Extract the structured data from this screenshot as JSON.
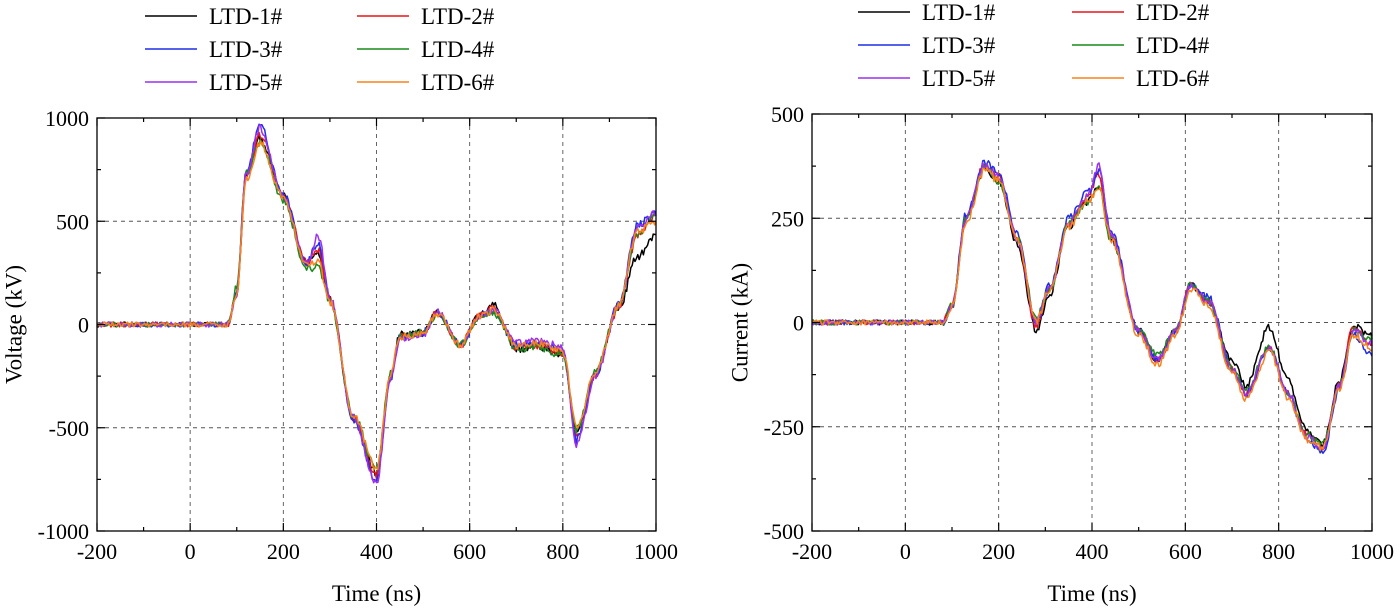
{
  "colors": {
    "LTD-1#": "#000000",
    "LTD-2#": "#e8141c",
    "LTD-3#": "#1f2de6",
    "LTD-4#": "#1a8a1a",
    "LTD-5#": "#9b30ee",
    "LTD-6#": "#f7821b"
  },
  "chart_data": [
    {
      "type": "line",
      "xlabel": "Time (ns)",
      "ylabel": "Voltage (kV)",
      "xlim": [
        -200,
        1000
      ],
      "ylim": [
        -1000,
        1000
      ],
      "xticks": [
        -200,
        0,
        200,
        400,
        600,
        800,
        1000
      ],
      "yticks": [
        -1000,
        -500,
        0,
        500,
        1000
      ],
      "x_tick_labels": [
        "-200",
        "0",
        "200",
        "400",
        "600",
        "800",
        "1000"
      ],
      "y_tick_labels": [
        "-1000",
        "-500",
        "0",
        "500",
        "1000"
      ],
      "grid": true,
      "legend": [
        "LTD-1#",
        "LTD-2#",
        "LTD-3#",
        "LTD-4#",
        "LTD-5#",
        "LTD-6#"
      ],
      "legend_position": "top, above plot, two columns",
      "x": [
        -200,
        80,
        100,
        120,
        150,
        200,
        250,
        275,
        300,
        350,
        400,
        430,
        450,
        500,
        530,
        580,
        620,
        650,
        700,
        750,
        800,
        830,
        870,
        920,
        960,
        1000
      ],
      "series": [
        {
          "name": "LTD-1#",
          "values": [
            0,
            0,
            150,
            720,
            900,
            620,
            300,
            350,
            120,
            -450,
            -720,
            -250,
            -50,
            -40,
            60,
            -100,
            40,
            100,
            -120,
            -110,
            -150,
            -520,
            -230,
            80,
            330,
            430
          ]
        },
        {
          "name": "LTD-2#",
          "values": [
            0,
            0,
            140,
            710,
            920,
            620,
            300,
            360,
            120,
            -450,
            -730,
            -250,
            -60,
            -40,
            60,
            -100,
            40,
            80,
            -110,
            -100,
            -140,
            -550,
            -240,
            80,
            430,
            520
          ]
        },
        {
          "name": "LTD-3#",
          "values": [
            0,
            0,
            160,
            740,
            960,
            630,
            300,
            400,
            130,
            -460,
            -760,
            -260,
            -60,
            -40,
            60,
            -100,
            40,
            70,
            -100,
            -90,
            -120,
            -560,
            -240,
            100,
            480,
            540
          ]
        },
        {
          "name": "LTD-4#",
          "values": [
            0,
            0,
            180,
            730,
            890,
            600,
            270,
            280,
            110,
            -440,
            -700,
            -240,
            -60,
            -40,
            50,
            -100,
            30,
            60,
            -120,
            -110,
            -150,
            -510,
            -220,
            90,
            440,
            520
          ]
        },
        {
          "name": "LTD-5#",
          "values": [
            0,
            0,
            150,
            730,
            950,
            620,
            300,
            430,
            130,
            -450,
            -770,
            -260,
            -70,
            -50,
            60,
            -100,
            40,
            70,
            -90,
            -80,
            -110,
            -580,
            -250,
            90,
            470,
            540
          ]
        },
        {
          "name": "LTD-6#",
          "values": [
            0,
            0,
            140,
            700,
            880,
            610,
            290,
            300,
            110,
            -440,
            -700,
            -240,
            -60,
            -40,
            50,
            -100,
            40,
            70,
            -100,
            -90,
            -130,
            -500,
            -230,
            90,
            450,
            500
          ]
        }
      ]
    },
    {
      "type": "line",
      "xlabel": "Time (ns)",
      "ylabel": "Current (kA)",
      "xlim": [
        -200,
        1000
      ],
      "ylim": [
        -500,
        500
      ],
      "xticks": [
        -200,
        0,
        200,
        400,
        600,
        800,
        1000
      ],
      "yticks": [
        -500,
        -250,
        0,
        250,
        500
      ],
      "x_tick_labels": [
        "-200",
        "0",
        "200",
        "400",
        "600",
        "800",
        "1000"
      ],
      "y_tick_labels": [
        "-500",
        "-250",
        "0",
        "250",
        "500"
      ],
      "grid": true,
      "legend": [
        "LTD-1#",
        "LTD-2#",
        "LTD-3#",
        "LTD-4#",
        "LTD-5#",
        "LTD-6#"
      ],
      "legend_position": "top, above plot, two columns",
      "x": [
        -200,
        80,
        100,
        130,
        170,
        200,
        240,
        280,
        310,
        350,
        390,
        415,
        440,
        500,
        540,
        580,
        610,
        650,
        700,
        730,
        780,
        820,
        860,
        895,
        930,
        960,
        1000
      ],
      "series": [
        {
          "name": "LTD-1#",
          "values": [
            0,
            0,
            40,
            250,
            370,
            340,
            190,
            -20,
            70,
            230,
            290,
            330,
            200,
            -20,
            -90,
            -20,
            90,
            50,
            -90,
            -150,
            -10,
            -140,
            -260,
            -290,
            -140,
            -10,
            -30
          ]
        },
        {
          "name": "LTD-2#",
          "values": [
            0,
            0,
            40,
            250,
            380,
            350,
            200,
            -10,
            80,
            240,
            300,
            355,
            210,
            -20,
            -90,
            -20,
            90,
            50,
            -110,
            -170,
            -60,
            -170,
            -270,
            -300,
            -150,
            -10,
            -50
          ]
        },
        {
          "name": "LTD-3#",
          "values": [
            0,
            0,
            40,
            260,
            385,
            360,
            210,
            0,
            90,
            250,
            310,
            360,
            220,
            -20,
            -90,
            -20,
            90,
            60,
            -110,
            -170,
            -60,
            -170,
            -280,
            -310,
            -160,
            -30,
            -80
          ]
        },
        {
          "name": "LTD-4#",
          "values": [
            0,
            0,
            40,
            250,
            370,
            340,
            200,
            10,
            80,
            240,
            290,
            320,
            200,
            -20,
            -80,
            -20,
            90,
            50,
            -110,
            -160,
            -60,
            -170,
            -270,
            -290,
            -150,
            -20,
            -40
          ]
        },
        {
          "name": "LTD-5#",
          "values": [
            0,
            0,
            40,
            250,
            380,
            350,
            200,
            0,
            80,
            240,
            300,
            375,
            210,
            -20,
            -90,
            -20,
            90,
            50,
            -110,
            -170,
            -60,
            -170,
            -270,
            -300,
            -150,
            -20,
            -50
          ]
        },
        {
          "name": "LTD-6#",
          "values": [
            0,
            0,
            40,
            240,
            365,
            340,
            200,
            0,
            80,
            230,
            290,
            320,
            200,
            -30,
            -100,
            -30,
            80,
            40,
            -120,
            -185,
            -70,
            -180,
            -280,
            -300,
            -160,
            -30,
            -60
          ]
        }
      ]
    }
  ]
}
